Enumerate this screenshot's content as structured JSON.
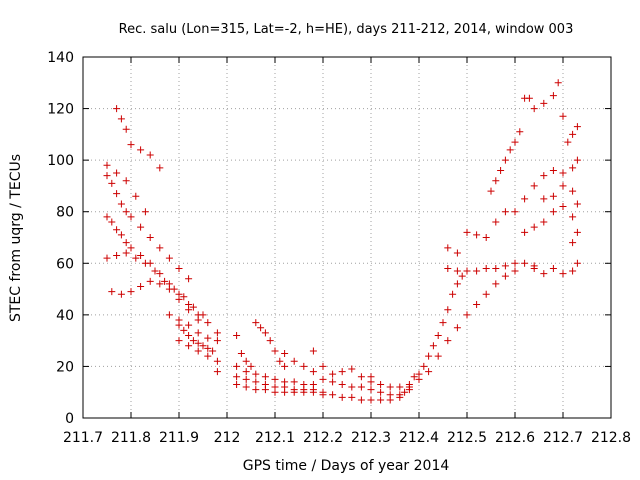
{
  "chart_data": {
    "type": "scatter",
    "title": "Rec. salu (Lon=315, Lat=-2, h=HE), days 211-212, 2014, window 003",
    "xlabel": "GPS time / Days of year 2014",
    "ylabel": "STEC from uqrg / TECUs",
    "xlim": [
      211.7,
      212.8
    ],
    "ylim": [
      0,
      140
    ],
    "xticks": [
      "211.7",
      "211.8",
      "211.9",
      "212",
      "212.1",
      "212.2",
      "212.3",
      "212.4",
      "212.5",
      "212.6",
      "212.7",
      "212.8"
    ],
    "yticks": [
      "0",
      "20",
      "40",
      "60",
      "80",
      "100",
      "120",
      "140"
    ],
    "grid": true,
    "marker": "plus",
    "color": "#cc0000",
    "series": [
      {
        "points": [
          [
            211.75,
            94
          ],
          [
            211.76,
            91
          ],
          [
            211.77,
            87
          ],
          [
            211.78,
            83
          ],
          [
            211.79,
            80
          ],
          [
            211.8,
            78
          ],
          [
            211.82,
            74
          ],
          [
            211.84,
            70
          ],
          [
            211.86,
            66
          ],
          [
            211.88,
            62
          ],
          [
            211.9,
            58
          ],
          [
            211.92,
            54
          ],
          [
            211.75,
            78
          ],
          [
            211.76,
            76
          ],
          [
            211.77,
            73
          ],
          [
            211.78,
            71
          ],
          [
            211.79,
            68
          ],
          [
            211.8,
            66
          ],
          [
            211.82,
            63
          ],
          [
            211.84,
            60
          ],
          [
            211.86,
            56
          ],
          [
            211.88,
            52
          ],
          [
            211.9,
            48
          ],
          [
            211.92,
            44
          ],
          [
            211.94,
            40
          ],
          [
            211.75,
            62
          ],
          [
            211.77,
            63
          ],
          [
            211.79,
            64
          ],
          [
            211.81,
            62
          ],
          [
            211.83,
            60
          ],
          [
            211.85,
            57
          ],
          [
            211.87,
            53
          ],
          [
            211.89,
            50
          ],
          [
            211.91,
            47
          ],
          [
            211.93,
            43
          ],
          [
            211.76,
            49
          ],
          [
            211.78,
            48
          ],
          [
            211.8,
            49
          ],
          [
            211.82,
            51
          ],
          [
            211.84,
            53
          ],
          [
            211.86,
            52
          ],
          [
            211.88,
            50
          ],
          [
            211.9,
            46
          ],
          [
            211.92,
            42
          ],
          [
            211.94,
            38
          ],
          [
            211.77,
            120
          ],
          [
            211.78,
            116
          ],
          [
            211.79,
            112
          ],
          [
            211.8,
            106
          ],
          [
            211.82,
            104
          ],
          [
            211.84,
            102
          ],
          [
            211.86,
            97
          ],
          [
            211.75,
            98
          ],
          [
            211.77,
            95
          ],
          [
            211.79,
            92
          ],
          [
            211.81,
            86
          ],
          [
            211.83,
            80
          ],
          [
            211.9,
            36
          ],
          [
            211.91,
            34
          ],
          [
            211.92,
            32
          ],
          [
            211.93,
            30
          ],
          [
            211.94,
            29
          ],
          [
            211.95,
            28
          ],
          [
            211.96,
            27
          ],
          [
            211.97,
            26
          ],
          [
            211.9,
            30
          ],
          [
            211.92,
            28
          ],
          [
            211.94,
            26
          ],
          [
            211.96,
            24
          ],
          [
            211.98,
            22
          ],
          [
            211.88,
            40
          ],
          [
            211.9,
            38
          ],
          [
            211.92,
            36
          ],
          [
            211.94,
            33
          ],
          [
            211.96,
            31
          ],
          [
            211.98,
            30
          ],
          [
            211.95,
            40
          ],
          [
            211.96,
            37
          ],
          [
            211.98,
            33
          ],
          [
            211.98,
            18
          ],
          [
            212.02,
            32
          ],
          [
            212.03,
            25
          ],
          [
            212.04,
            22
          ],
          [
            212.05,
            20
          ],
          [
            212.06,
            37
          ],
          [
            212.07,
            35
          ],
          [
            212.08,
            33
          ],
          [
            212.09,
            30
          ],
          [
            212.1,
            26
          ],
          [
            212.11,
            22
          ],
          [
            212.12,
            20
          ],
          [
            212.02,
            20
          ],
          [
            212.04,
            18
          ],
          [
            212.06,
            17
          ],
          [
            212.08,
            16
          ],
          [
            212.1,
            15
          ],
          [
            212.12,
            14
          ],
          [
            212.14,
            14
          ],
          [
            212.16,
            13
          ],
          [
            212.18,
            13
          ],
          [
            212.02,
            16
          ],
          [
            212.04,
            15
          ],
          [
            212.06,
            14
          ],
          [
            212.08,
            13
          ],
          [
            212.1,
            12
          ],
          [
            212.12,
            12
          ],
          [
            212.14,
            11
          ],
          [
            212.16,
            11
          ],
          [
            212.18,
            11
          ],
          [
            212.2,
            10
          ],
          [
            212.02,
            13
          ],
          [
            212.04,
            12
          ],
          [
            212.06,
            11
          ],
          [
            212.08,
            11
          ],
          [
            212.1,
            10
          ],
          [
            212.12,
            10
          ],
          [
            212.14,
            10
          ],
          [
            212.16,
            10
          ],
          [
            212.18,
            10
          ],
          [
            212.2,
            9
          ],
          [
            212.22,
            9
          ],
          [
            212.24,
            8
          ],
          [
            212.26,
            8
          ],
          [
            212.28,
            7
          ],
          [
            212.3,
            7
          ],
          [
            212.32,
            7
          ],
          [
            212.34,
            7
          ],
          [
            212.36,
            8
          ],
          [
            212.12,
            25
          ],
          [
            212.14,
            22
          ],
          [
            212.16,
            20
          ],
          [
            212.18,
            26
          ],
          [
            212.2,
            20
          ],
          [
            212.22,
            17
          ],
          [
            212.24,
            18
          ],
          [
            212.26,
            19
          ],
          [
            212.28,
            16
          ],
          [
            212.3,
            16
          ],
          [
            212.18,
            18
          ],
          [
            212.2,
            15
          ],
          [
            212.22,
            14
          ],
          [
            212.24,
            13
          ],
          [
            212.26,
            12
          ],
          [
            212.28,
            12
          ],
          [
            212.3,
            11
          ],
          [
            212.32,
            10
          ],
          [
            212.34,
            9
          ],
          [
            212.36,
            9
          ],
          [
            212.3,
            14
          ],
          [
            212.32,
            13
          ],
          [
            212.34,
            12
          ],
          [
            212.36,
            12
          ],
          [
            212.37,
            10
          ],
          [
            212.38,
            11
          ],
          [
            212.38,
            13
          ],
          [
            212.39,
            16
          ],
          [
            212.4,
            17
          ],
          [
            212.41,
            20
          ],
          [
            212.42,
            24
          ],
          [
            212.43,
            28
          ],
          [
            212.44,
            32
          ],
          [
            212.45,
            37
          ],
          [
            212.46,
            42
          ],
          [
            212.47,
            48
          ],
          [
            212.48,
            52
          ],
          [
            212.49,
            55
          ],
          [
            212.38,
            12
          ],
          [
            212.4,
            15
          ],
          [
            212.42,
            18
          ],
          [
            212.44,
            24
          ],
          [
            212.46,
            30
          ],
          [
            212.48,
            35
          ],
          [
            212.5,
            40
          ],
          [
            212.52,
            44
          ],
          [
            212.54,
            48
          ],
          [
            212.56,
            52
          ],
          [
            212.58,
            55
          ],
          [
            212.6,
            57
          ],
          [
            212.46,
            58
          ],
          [
            212.48,
            57
          ],
          [
            212.5,
            57
          ],
          [
            212.52,
            57
          ],
          [
            212.54,
            58
          ],
          [
            212.56,
            58
          ],
          [
            212.58,
            59
          ],
          [
            212.6,
            60
          ],
          [
            212.62,
            60
          ],
          [
            212.64,
            59
          ],
          [
            212.46,
            66
          ],
          [
            212.48,
            64
          ],
          [
            212.5,
            72
          ],
          [
            212.52,
            71
          ],
          [
            212.54,
            70
          ],
          [
            212.56,
            76
          ],
          [
            212.58,
            80
          ],
          [
            212.55,
            88
          ],
          [
            212.56,
            92
          ],
          [
            212.57,
            96
          ],
          [
            212.58,
            100
          ],
          [
            212.59,
            104
          ],
          [
            212.6,
            107
          ],
          [
            212.61,
            111
          ],
          [
            212.62,
            124
          ],
          [
            212.63,
            124
          ],
          [
            212.6,
            80
          ],
          [
            212.62,
            85
          ],
          [
            212.64,
            90
          ],
          [
            212.66,
            94
          ],
          [
            212.68,
            96
          ],
          [
            212.7,
            95
          ],
          [
            212.72,
            97
          ],
          [
            212.73,
            100
          ],
          [
            212.62,
            72
          ],
          [
            212.64,
            74
          ],
          [
            212.66,
            76
          ],
          [
            212.68,
            80
          ],
          [
            212.7,
            82
          ],
          [
            212.72,
            78
          ],
          [
            212.73,
            83
          ],
          [
            212.64,
            58
          ],
          [
            212.66,
            56
          ],
          [
            212.68,
            58
          ],
          [
            212.7,
            56
          ],
          [
            212.72,
            57
          ],
          [
            212.73,
            60
          ],
          [
            212.66,
            85
          ],
          [
            212.68,
            86
          ],
          [
            212.7,
            90
          ],
          [
            212.71,
            107
          ],
          [
            212.72,
            110
          ],
          [
            212.73,
            113
          ],
          [
            212.64,
            120
          ],
          [
            212.66,
            122
          ],
          [
            212.68,
            125
          ],
          [
            212.69,
            130
          ],
          [
            212.7,
            117
          ],
          [
            212.72,
            68
          ],
          [
            212.73,
            72
          ],
          [
            212.72,
            88
          ]
        ]
      }
    ]
  }
}
